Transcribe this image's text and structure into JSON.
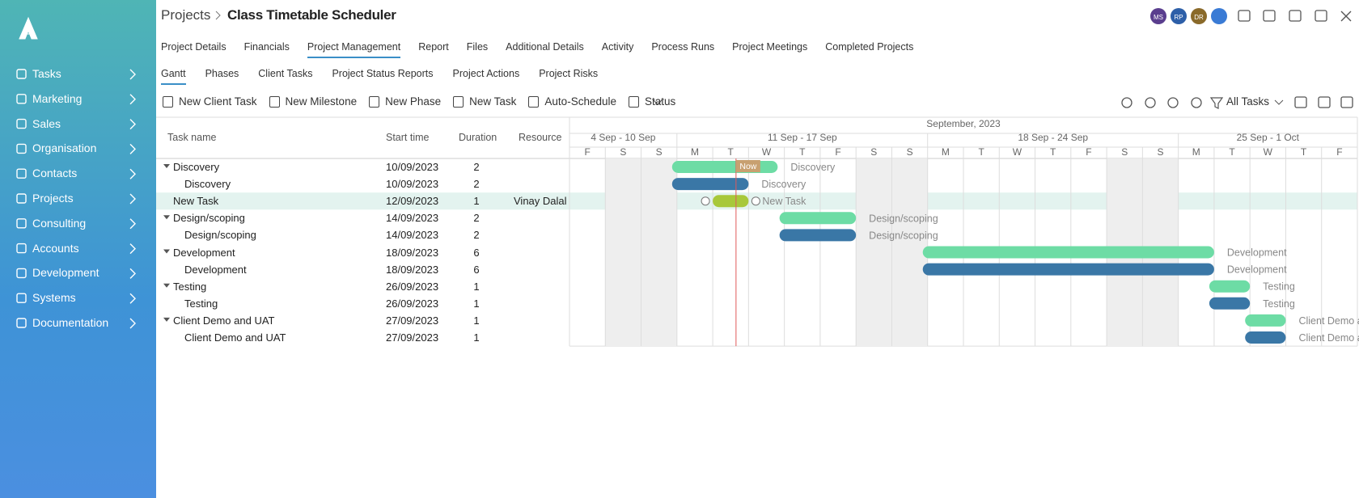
{
  "header": {
    "parent": "Projects",
    "title": "Class Timetable Scheduler",
    "avatars": [
      "MS",
      "RP",
      "DR"
    ]
  },
  "sidebar": {
    "items": [
      "Tasks",
      "Marketing",
      "Sales",
      "Organisation",
      "Contacts",
      "Projects",
      "Consulting",
      "Accounts",
      "Development",
      "Systems",
      "Documentation"
    ]
  },
  "tabs": [
    "Project Details",
    "Financials",
    "Project Management",
    "Report",
    "Files",
    "Additional Details",
    "Activity",
    "Process Runs",
    "Project Meetings",
    "Completed Projects"
  ],
  "subtabs": [
    "Gantt",
    "Phases",
    "Client Tasks",
    "Project Status Reports",
    "Project Actions",
    "Project Risks"
  ],
  "toolbar": {
    "actions": [
      "New Client Task",
      "New Milestone",
      "New Phase",
      "New Task",
      "Auto-Schedule",
      "Status"
    ],
    "filter": "All Tasks"
  },
  "table": {
    "columns": [
      "Task name",
      "Start time",
      "Duration",
      "Resource"
    ],
    "rows": [
      {
        "name": "Discovery",
        "start": "10/09/2023",
        "duration": 2
      },
      {
        "name": "Discovery",
        "start": "10/09/2023",
        "duration": 2
      },
      {
        "name": "New Task",
        "start": "12/09/2023",
        "duration": 1,
        "resource": "Vinay Dalal"
      },
      {
        "name": "Design/scoping",
        "start": "14/09/2023",
        "duration": 2
      },
      {
        "name": "Design/scoping",
        "start": "14/09/2023",
        "duration": 2
      },
      {
        "name": "Development",
        "start": "18/09/2023",
        "duration": 6
      },
      {
        "name": "Development",
        "start": "18/09/2023",
        "duration": 6
      },
      {
        "name": "Testing",
        "start": "26/09/2023",
        "duration": 1
      },
      {
        "name": "Testing",
        "start": "26/09/2023",
        "duration": 1
      },
      {
        "name": "Client Demo and UAT",
        "start": "27/09/2023",
        "duration": 1
      },
      {
        "name": "Client Demo and UAT",
        "start": "27/09/2023",
        "duration": 1
      }
    ]
  },
  "gantt": {
    "month": "September, 2023",
    "weeks": [
      "4 Sep - 10 Sep",
      "11 Sep - 17 Sep",
      "18 Sep - 24 Sep",
      "25 Sep - 1 Oct"
    ],
    "days": [
      "F",
      "S",
      "S",
      "M",
      "T",
      "W",
      "T",
      "F",
      "S",
      "S",
      "M",
      "T",
      "W",
      "T",
      "F",
      "S",
      "S",
      "M",
      "T",
      "W",
      "T",
      "F"
    ],
    "now": "Now"
  }
}
